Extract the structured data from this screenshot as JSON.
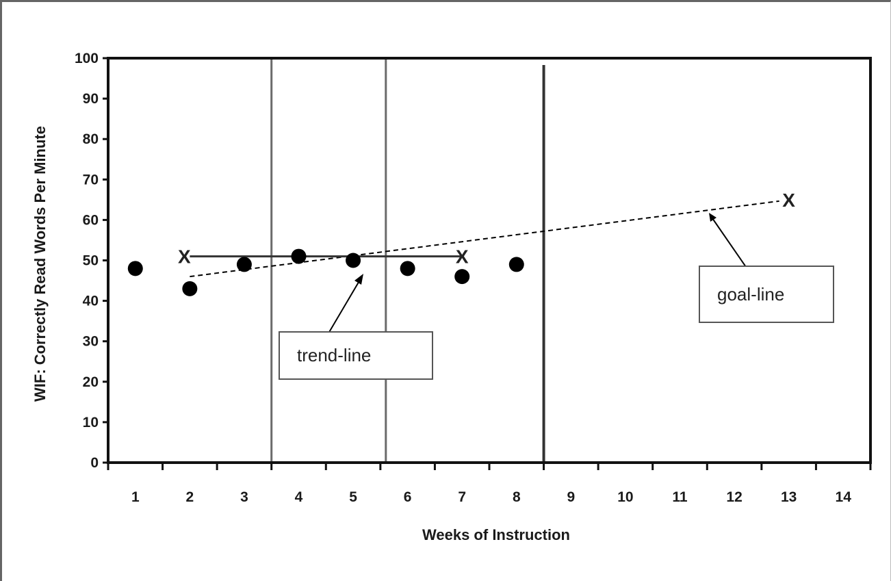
{
  "chart_data": {
    "type": "scatter",
    "xlabel": "Weeks of Instruction",
    "ylabel": "WIF: Correctly Read Words Per Minute",
    "xlim": [
      0.5,
      14.5
    ],
    "ylim": [
      0,
      100
    ],
    "x_ticks": [
      1,
      2,
      3,
      4,
      5,
      6,
      7,
      8,
      9,
      10,
      11,
      12,
      13,
      14
    ],
    "y_ticks": [
      0,
      10,
      20,
      30,
      40,
      50,
      60,
      70,
      80,
      90,
      100
    ],
    "grid": false,
    "series": [
      {
        "x": [
          1,
          2,
          3,
          4,
          5,
          6,
          7,
          8
        ],
        "y": [
          48,
          43,
          49,
          51,
          50,
          48,
          46,
          49
        ]
      }
    ],
    "phase_lines_x": [
      3.5,
      5.6,
      8.5
    ],
    "trend_line": {
      "label": "trend-line",
      "start": {
        "x": 2,
        "y": 51
      },
      "end": {
        "x": 7,
        "y": 51
      }
    },
    "goal_line": {
      "label": "goal-line",
      "start": {
        "x": 2,
        "y": 46
      },
      "end": {
        "x": 13,
        "y": 65
      }
    },
    "marker_symbol": "X"
  }
}
